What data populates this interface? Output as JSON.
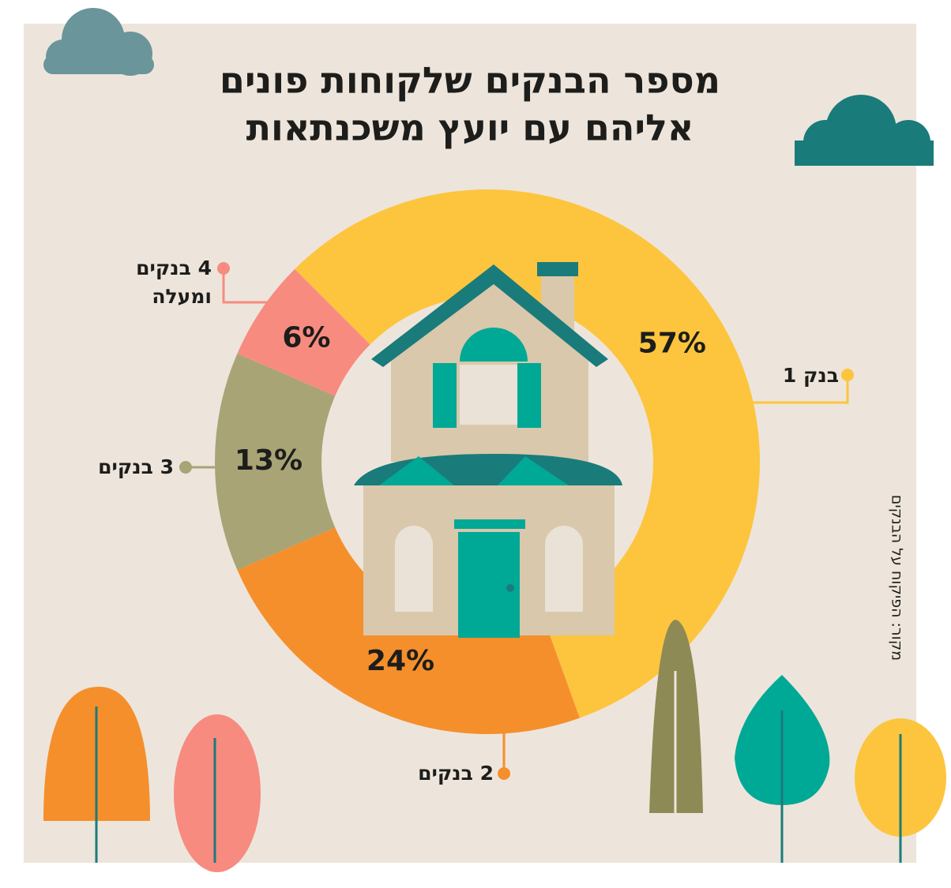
{
  "chart_data": {
    "type": "donut",
    "title": [
      "מספר הבנקים שלקוחות פונים",
      "אליהם עם יועץ משכנתאות"
    ],
    "categories": [
      "בנק 1",
      "2 בנקים",
      "3 בנקים",
      "4 בנקים ומעלה"
    ],
    "values": [
      57,
      24,
      13,
      6
    ],
    "value_labels": [
      "57%",
      "24%",
      "13%",
      "6%"
    ],
    "colors": [
      "#fdc53e",
      "#f58f2c",
      "#a8a476",
      "#f78b80"
    ],
    "source": "מקור: הפיקוח על הבנקים"
  }
}
